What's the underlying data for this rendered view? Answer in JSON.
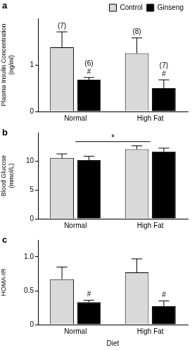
{
  "chart_data": [
    {
      "type": "bar",
      "title": "a",
      "y_label": "Plasma Insulin Concentration (ng/ml)",
      "categories": [
        "Normal",
        "High Fat"
      ],
      "series": [
        {
          "name": "Control",
          "color": "#d9d9d9",
          "values": [
            1.38,
            1.25
          ],
          "errors": [
            0.33,
            0.33
          ]
        },
        {
          "name": "Ginseng",
          "color": "#000000",
          "values": [
            0.68,
            0.5
          ],
          "errors": [
            0.05,
            0.18
          ]
        }
      ],
      "ylim": [
        0,
        2
      ],
      "yticks": [
        0,
        1
      ],
      "grid": false,
      "legend": "top right",
      "annotations": [
        {
          "text": "(7)",
          "category": "Normal",
          "series": "Control"
        },
        {
          "text": "#",
          "category": "Normal",
          "series": "Ginseng"
        },
        {
          "text": "(6)",
          "category": "Normal",
          "series": "Ginseng"
        },
        {
          "text": "(8)",
          "category": "High Fat",
          "series": "Control"
        },
        {
          "text": "#",
          "category": "High Fat",
          "series": "Ginseng"
        },
        {
          "text": "(7)",
          "category": "High Fat",
          "series": "Ginseng"
        }
      ]
    },
    {
      "type": "bar",
      "title": "b",
      "y_label": "Blood Glucose (mmol/L)",
      "categories": [
        "Normal",
        "High Fat"
      ],
      "series": [
        {
          "name": "Control",
          "color": "#d9d9d9",
          "values": [
            10.6,
            12.1
          ],
          "errors": [
            0.7,
            0.6
          ]
        },
        {
          "name": "Ginseng",
          "color": "#000000",
          "values": [
            10.2,
            11.7
          ],
          "errors": [
            0.7,
            0.6
          ]
        }
      ],
      "ylim": [
        0,
        15
      ],
      "yticks": [
        0,
        5,
        10
      ],
      "grid": false,
      "legend": false,
      "annotations": [
        {
          "text": "*",
          "between": [
            "Normal",
            "High Fat"
          ]
        }
      ]
    },
    {
      "type": "bar",
      "title": "c",
      "y_label": "HOMA-IR",
      "x_label": "Diet",
      "categories": [
        "Normal",
        "High Fat"
      ],
      "series": [
        {
          "name": "Control",
          "color": "#d9d9d9",
          "values": [
            0.67,
            0.77
          ],
          "errors": [
            0.18,
            0.2
          ]
        },
        {
          "name": "Ginseng",
          "color": "#000000",
          "values": [
            0.33,
            0.27
          ],
          "errors": [
            0.03,
            0.08
          ]
        }
      ],
      "ylim": [
        0,
        1.25
      ],
      "yticks": [
        0,
        0.5,
        {
          "value": 1,
          "label": "1.0"
        }
      ],
      "grid": false,
      "legend": false,
      "annotations": [
        {
          "text": "#",
          "category": "Normal",
          "series": "Ginseng"
        },
        {
          "text": "#",
          "category": "High Fat",
          "series": "Ginseng"
        }
      ]
    }
  ]
}
